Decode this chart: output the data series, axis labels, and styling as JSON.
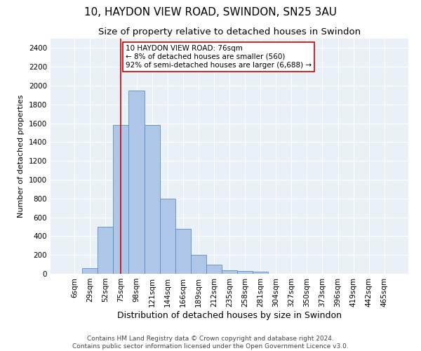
{
  "title1": "10, HAYDON VIEW ROAD, SWINDON, SN25 3AU",
  "title2": "Size of property relative to detached houses in Swindon",
  "xlabel": "Distribution of detached houses by size in Swindon",
  "ylabel": "Number of detached properties",
  "footer1": "Contains HM Land Registry data © Crown copyright and database right 2024.",
  "footer2": "Contains public sector information licensed under the Open Government Licence v3.0.",
  "annotation_line1": "10 HAYDON VIEW ROAD: 76sqm",
  "annotation_line2": "← 8% of detached houses are smaller (560)",
  "annotation_line3": "92% of semi-detached houses are larger (6,688) →",
  "bar_labels": [
    "6sqm",
    "29sqm",
    "52sqm",
    "75sqm",
    "98sqm",
    "121sqm",
    "144sqm",
    "166sqm",
    "189sqm",
    "212sqm",
    "235sqm",
    "258sqm",
    "281sqm",
    "304sqm",
    "327sqm",
    "350sqm",
    "373sqm",
    "396sqm",
    "419sqm",
    "442sqm",
    "465sqm"
  ],
  "bar_values": [
    0,
    60,
    500,
    1580,
    1950,
    1580,
    800,
    480,
    200,
    100,
    35,
    30,
    25,
    0,
    0,
    0,
    0,
    0,
    0,
    0,
    0
  ],
  "bar_color": "#aec6e8",
  "bar_edge_color": "#5a8fc0",
  "red_line_x": 3,
  "ylim": [
    0,
    2500
  ],
  "yticks": [
    0,
    200,
    400,
    600,
    800,
    1000,
    1200,
    1400,
    1600,
    1800,
    2000,
    2200,
    2400
  ],
  "plot_bg_color": "#eaf0f8",
  "annotation_box_color": "#ffffff",
  "annotation_box_edge": "#cc0000",
  "title1_fontsize": 11,
  "title2_fontsize": 9.5,
  "xlabel_fontsize": 9,
  "ylabel_fontsize": 8,
  "tick_fontsize": 7.5,
  "footer_fontsize": 6.5
}
